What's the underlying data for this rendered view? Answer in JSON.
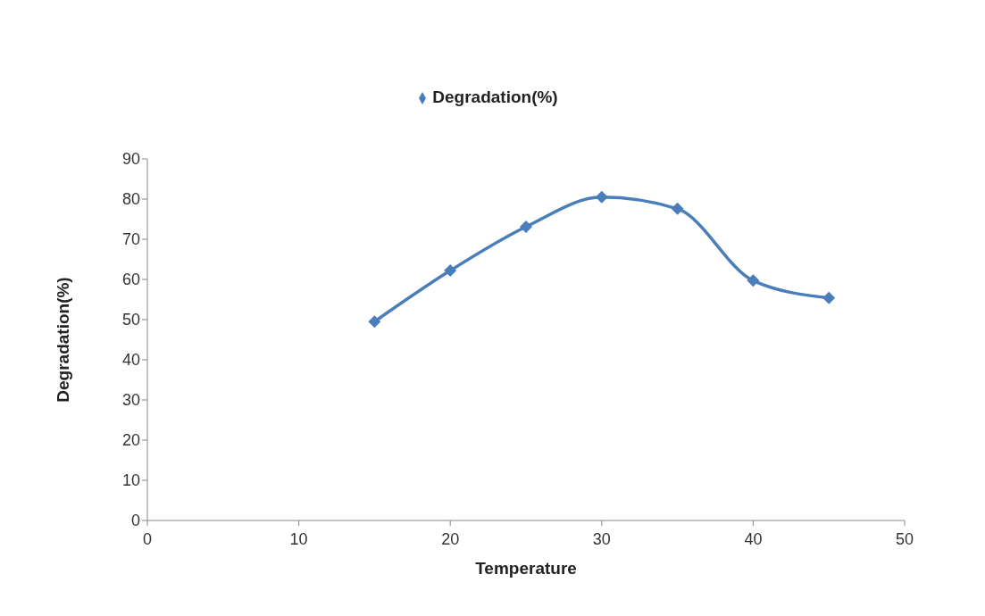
{
  "chart_data": {
    "type": "line",
    "xlabel": "Temperature",
    "ylabel": "Degradation(%)",
    "x": [
      15,
      20,
      25,
      30,
      35,
      40,
      45
    ],
    "series": [
      {
        "name": "Degradation(%)",
        "color": "#4a7ebb",
        "values": [
          49.5,
          62.2,
          73.1,
          80.5,
          77.6,
          59.7,
          55.4
        ]
      }
    ],
    "xlim": [
      0,
      50
    ],
    "xticks": [
      0,
      10,
      20,
      30,
      40,
      50
    ],
    "ylim": [
      0,
      90
    ],
    "yticks": [
      0,
      10,
      20,
      30,
      40,
      50,
      60,
      70,
      80,
      90
    ],
    "grid": false,
    "legend": "top",
    "marker": "diamond",
    "line_style": "solid"
  }
}
